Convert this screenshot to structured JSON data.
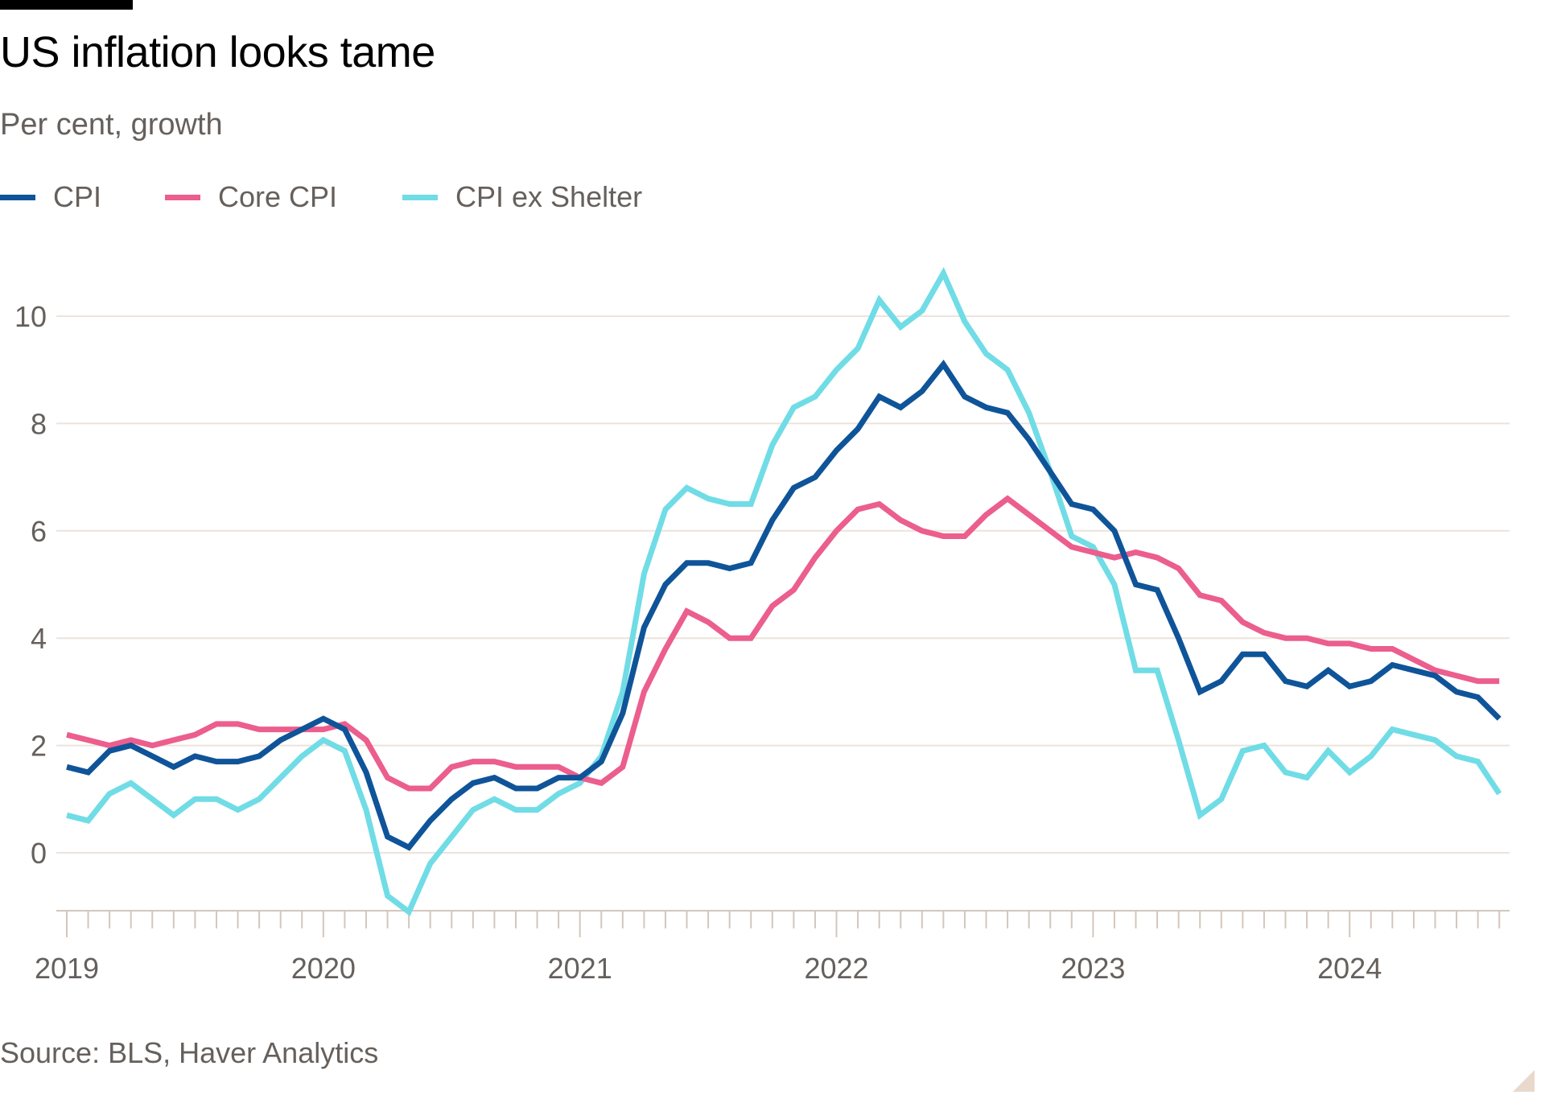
{
  "chart_data": {
    "type": "line",
    "title": "US inflation looks tame",
    "subtitle": "Per cent, growth",
    "xlabel": "",
    "ylabel": "",
    "x_start": "2019-01",
    "x_end": "2024-08",
    "frequency": "monthly",
    "x_tick_labels": [
      "2019",
      "2020",
      "2021",
      "2022",
      "2023",
      "2024"
    ],
    "y_tick_labels": [
      "0",
      "2",
      "4",
      "6",
      "8",
      "10"
    ],
    "y_ticks": [
      0,
      2,
      4,
      6,
      8,
      10
    ],
    "ylim": [
      -1.1,
      10.8
    ],
    "grid": true,
    "legend_position": "top-left",
    "series": [
      {
        "name": "CPI",
        "color": "#0f5499",
        "values": [
          1.6,
          1.5,
          1.9,
          2.0,
          1.8,
          1.6,
          1.8,
          1.7,
          1.7,
          1.8,
          2.1,
          2.3,
          2.5,
          2.3,
          1.5,
          0.3,
          0.1,
          0.6,
          1.0,
          1.3,
          1.4,
          1.2,
          1.2,
          1.4,
          1.4,
          1.7,
          2.6,
          4.2,
          5.0,
          5.4,
          5.4,
          5.3,
          5.4,
          6.2,
          6.8,
          7.0,
          7.5,
          7.9,
          8.5,
          8.3,
          8.6,
          9.1,
          8.5,
          8.3,
          8.2,
          7.7,
          7.1,
          6.5,
          6.4,
          6.0,
          5.0,
          4.9,
          4.0,
          3.0,
          3.2,
          3.7,
          3.7,
          3.2,
          3.1,
          3.4,
          3.1,
          3.2,
          3.5,
          3.4,
          3.3,
          3.0,
          2.9,
          2.5
        ]
      },
      {
        "name": "Core CPI",
        "color": "#eb5e8d",
        "values": [
          2.2,
          2.1,
          2.0,
          2.1,
          2.0,
          2.1,
          2.2,
          2.4,
          2.4,
          2.3,
          2.3,
          2.3,
          2.3,
          2.4,
          2.1,
          1.4,
          1.2,
          1.2,
          1.6,
          1.7,
          1.7,
          1.6,
          1.6,
          1.6,
          1.4,
          1.3,
          1.6,
          3.0,
          3.8,
          4.5,
          4.3,
          4.0,
          4.0,
          4.6,
          4.9,
          5.5,
          6.0,
          6.4,
          6.5,
          6.2,
          6.0,
          5.9,
          5.9,
          6.3,
          6.6,
          6.3,
          6.0,
          5.7,
          5.6,
          5.5,
          5.6,
          5.5,
          5.3,
          4.8,
          4.7,
          4.3,
          4.1,
          4.0,
          4.0,
          3.9,
          3.9,
          3.8,
          3.8,
          3.6,
          3.4,
          3.3,
          3.2,
          3.2
        ]
      },
      {
        "name": "CPI ex Shelter",
        "color": "#70dce6",
        "values": [
          0.7,
          0.6,
          1.1,
          1.3,
          1.0,
          0.7,
          1.0,
          1.0,
          0.8,
          1.0,
          1.4,
          1.8,
          2.1,
          1.9,
          0.8,
          -0.8,
          -1.1,
          -0.2,
          0.3,
          0.8,
          1.0,
          0.8,
          0.8,
          1.1,
          1.3,
          1.8,
          3.0,
          5.2,
          6.4,
          6.8,
          6.6,
          6.5,
          6.5,
          7.6,
          8.3,
          8.5,
          9.0,
          9.4,
          10.3,
          9.8,
          10.1,
          10.8,
          9.9,
          9.3,
          9.0,
          8.2,
          7.1,
          5.9,
          5.7,
          5.0,
          3.4,
          3.4,
          2.1,
          0.7,
          1.0,
          1.9,
          2.0,
          1.5,
          1.4,
          1.9,
          1.5,
          1.8,
          2.3,
          2.2,
          2.1,
          1.8,
          1.7,
          1.1
        ]
      }
    ],
    "source": "Source: BLS, Haver Analytics"
  },
  "colors": {
    "grid": "#ece4db",
    "axis": "#d3c7bd",
    "tick_text": "#66605c"
  }
}
